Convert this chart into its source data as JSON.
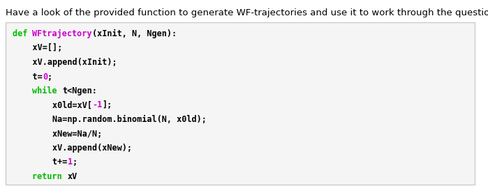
{
  "header_text": "Have a look of the provided function to generate WF-trajectories and use it to work through the questions.",
  "header_fontsize": 9.5,
  "header_color": "#000000",
  "bg_color": "#ffffff",
  "code_bg_color": "#f5f5f5",
  "code_border_color": "#cccccc",
  "keyword_color": "#00bb00",
  "funcname_color": "#cc00cc",
  "number_color": "#cc00cc",
  "normal_color": "#000000",
  "code_fontsize": 8.5,
  "code_lines": [
    [
      {
        "text": "def ",
        "color": "#00bb00"
      },
      {
        "text": "WFtrajectory",
        "color": "#cc00cc"
      },
      {
        "text": "(xInit, N, Ngen):",
        "color": "#000000"
      }
    ],
    [
      {
        "text": "    xV=[];",
        "color": "#000000"
      }
    ],
    [
      {
        "text": "    xV.append(xInit);",
        "color": "#000000"
      }
    ],
    [
      {
        "text": "    t=",
        "color": "#000000"
      },
      {
        "text": "0",
        "color": "#cc00cc"
      },
      {
        "text": ";",
        "color": "#000000"
      }
    ],
    [
      {
        "text": "    ",
        "color": "#000000"
      },
      {
        "text": "while ",
        "color": "#00bb00"
      },
      {
        "text": "t<Ngen:",
        "color": "#000000"
      }
    ],
    [
      {
        "text": "        x0ld=xV[",
        "color": "#000000"
      },
      {
        "text": "-1",
        "color": "#cc00cc"
      },
      {
        "text": "];",
        "color": "#000000"
      }
    ],
    [
      {
        "text": "        Na=np.random.binomial(N, x0ld);",
        "color": "#000000"
      }
    ],
    [
      {
        "text": "        xNew=Na/N;",
        "color": "#000000"
      }
    ],
    [
      {
        "text": "        xV.append(xNew);",
        "color": "#000000"
      }
    ],
    [
      {
        "text": "        t+=",
        "color": "#000000"
      },
      {
        "text": "1",
        "color": "#cc00cc"
      },
      {
        "text": ";",
        "color": "#000000"
      }
    ],
    [
      {
        "text": "    ",
        "color": "#000000"
      },
      {
        "text": "return ",
        "color": "#00bb00"
      },
      {
        "text": "xV",
        "color": "#000000"
      }
    ]
  ]
}
